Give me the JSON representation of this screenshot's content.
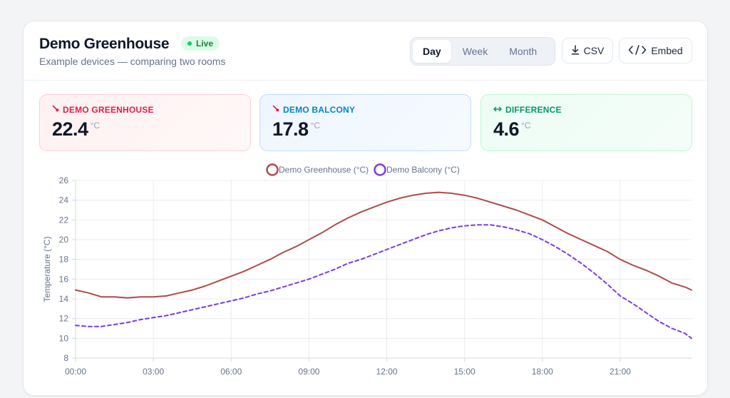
{
  "header": {
    "title": "Demo Greenhouse",
    "live_label": "Live",
    "subtitle": "Example devices — comparing two rooms"
  },
  "range_tabs": [
    {
      "label": "Day",
      "active": true
    },
    {
      "label": "Week",
      "active": false
    },
    {
      "label": "Month",
      "active": false
    }
  ],
  "actions": {
    "csv_label": "CSV",
    "csv_icon": "download-icon",
    "embed_label": "Embed",
    "embed_icon": "code-icon"
  },
  "stats": [
    {
      "label": "DEMO GREENHOUSE",
      "icon": "thermometer-icon",
      "value": "22.4",
      "unit": "°C",
      "color": "#e11d48"
    },
    {
      "label": "DEMO BALCONY",
      "icon": "thermometer-icon",
      "value": "17.8",
      "unit": "°C",
      "color": "#0284c7"
    },
    {
      "label": "DIFFERENCE",
      "icon": "arrows-horizontal-icon",
      "value": "4.6",
      "unit": "°C",
      "color": "#059669"
    }
  ],
  "chart_data": {
    "type": "line",
    "ylabel": "Temperature (°C)",
    "ylim": [
      8,
      26
    ],
    "y_ticks": [
      8,
      10,
      12,
      14,
      16,
      18,
      20,
      22,
      24,
      26
    ],
    "xlim": [
      0,
      23.75
    ],
    "x_ticks": [
      {
        "value": 0,
        "label": "00:00"
      },
      {
        "value": 3,
        "label": "03:00"
      },
      {
        "value": 6,
        "label": "06:00"
      },
      {
        "value": 9,
        "label": "09:00"
      },
      {
        "value": 12,
        "label": "12:00"
      },
      {
        "value": 15,
        "label": "15:00"
      },
      {
        "value": 18,
        "label": "18:00"
      },
      {
        "value": 21,
        "label": "21:00"
      }
    ],
    "grid": true,
    "legend_position": "top-center",
    "x": [
      0,
      0.5,
      1,
      1.5,
      2,
      2.5,
      3,
      3.5,
      4,
      4.5,
      5,
      5.5,
      6,
      6.5,
      7,
      7.5,
      8,
      8.5,
      9,
      9.5,
      10,
      10.5,
      11,
      11.5,
      12,
      12.5,
      13,
      13.5,
      14,
      14.5,
      15,
      15.5,
      16,
      16.5,
      17,
      17.5,
      18,
      18.5,
      19,
      19.5,
      20,
      20.5,
      21,
      21.5,
      22,
      22.5,
      23,
      23.5,
      23.75
    ],
    "series": [
      {
        "name": "Demo Greenhouse (°C)",
        "color": "#b04a4a",
        "dash": "solid",
        "values": [
          14.9,
          14.6,
          14.2,
          14.2,
          14.1,
          14.2,
          14.2,
          14.3,
          14.6,
          14.9,
          15.3,
          15.8,
          16.3,
          16.8,
          17.4,
          18.0,
          18.7,
          19.3,
          20.0,
          20.7,
          21.5,
          22.2,
          22.8,
          23.3,
          23.8,
          24.2,
          24.5,
          24.7,
          24.8,
          24.7,
          24.5,
          24.2,
          23.8,
          23.4,
          23.0,
          22.5,
          22.0,
          21.3,
          20.6,
          20.0,
          19.4,
          18.8,
          18.0,
          17.4,
          16.9,
          16.3,
          15.6,
          15.2,
          14.9
        ]
      },
      {
        "name": "Demo Balcony (°C)",
        "color": "#7c3aed",
        "dash": "dashed",
        "values": [
          11.3,
          11.2,
          11.2,
          11.4,
          11.6,
          11.9,
          12.1,
          12.3,
          12.6,
          12.9,
          13.2,
          13.5,
          13.8,
          14.1,
          14.5,
          14.8,
          15.2,
          15.6,
          16.0,
          16.5,
          17.0,
          17.6,
          18.0,
          18.5,
          19.0,
          19.5,
          20.0,
          20.5,
          20.9,
          21.2,
          21.4,
          21.5,
          21.5,
          21.3,
          21.0,
          20.6,
          20.0,
          19.3,
          18.5,
          17.6,
          16.6,
          15.5,
          14.3,
          13.5,
          12.6,
          11.7,
          11.0,
          10.5,
          10.0
        ]
      }
    ]
  }
}
